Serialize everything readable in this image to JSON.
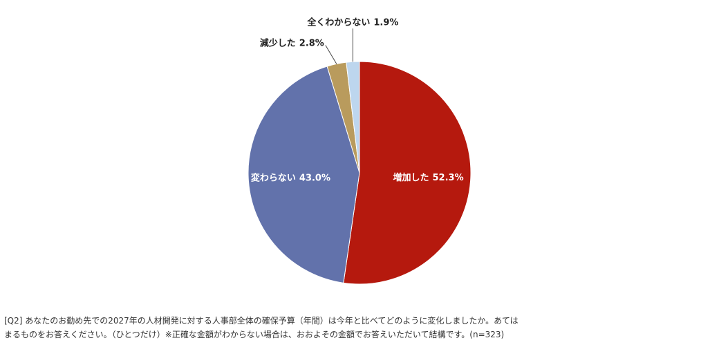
{
  "chart_data": {
    "type": "pie",
    "categories": [
      "増加した",
      "変わらない",
      "減少した",
      "全くわからない"
    ],
    "values": [
      52.3,
      43.0,
      2.8,
      1.9
    ],
    "value_labels": [
      "52.3%",
      "43.0%",
      "2.8%",
      "1.9%"
    ],
    "colors": [
      "#b5190e",
      "#6272ab",
      "#b99b5d",
      "#bdd6ee"
    ],
    "footnote": [
      "[Q2] あなたのお勤め先での2027年の人材開発に対する人事部全体の確保予算（年間）は今年と比べてどのように変化しましたか。あては",
      "まるものをお答えください。（ひとつだけ）※正確な金額がわからない場合は、おおよその金額でお答えいただいて結構です。(n=323)"
    ]
  }
}
